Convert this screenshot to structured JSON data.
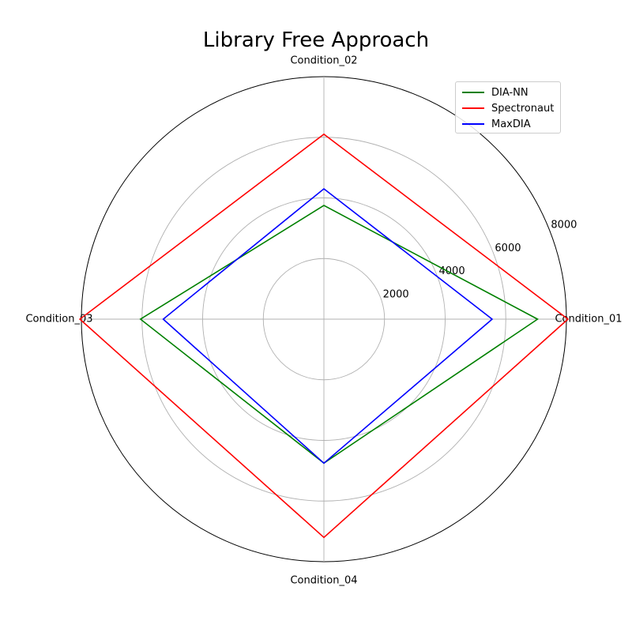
{
  "chart_data": {
    "type": "radar",
    "title": "Library Free Approach",
    "categories": [
      "Condition_01",
      "Condition_02",
      "Condition_03",
      "Condition_04"
    ],
    "rlim": [
      0,
      8000
    ],
    "rticks": [
      2000,
      4000,
      6000,
      8000
    ],
    "rtick_labels": [
      "2000",
      "4000",
      "6000",
      "8000"
    ],
    "grid": true,
    "legend_position": "top-right",
    "series": [
      {
        "name": "DIA-NN",
        "color": "#008000",
        "values": [
          7050,
          3750,
          6050,
          4750
        ]
      },
      {
        "name": "Spectronaut",
        "color": "#ff0000",
        "values": [
          8050,
          6100,
          8050,
          7200
        ]
      },
      {
        "name": "MaxDIA",
        "color": "#0000ff",
        "values": [
          5550,
          4300,
          5300,
          4750
        ]
      }
    ]
  }
}
